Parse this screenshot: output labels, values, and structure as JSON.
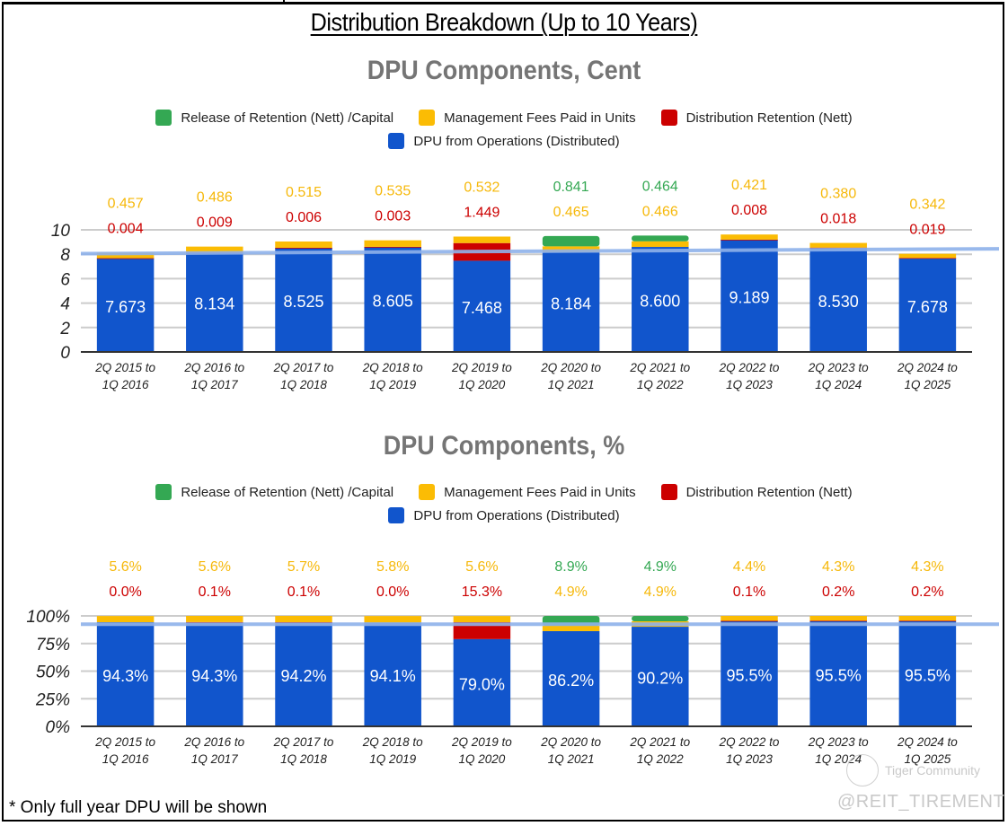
{
  "page": {
    "title": "Distribution Breakdown (Up to 10 Years)",
    "footnote": "* Only full year DPU will be shown",
    "watermark": {
      "community": "Tiger Community",
      "handle": "@REIT_TIREMENT"
    }
  },
  "colors": {
    "release": "#34a853",
    "mgmt": "#fbbc04",
    "retention": "#cc0000",
    "operations": "#1155cc",
    "trendline": "#8fb2ea",
    "grid": "#cccccc",
    "axis": "#333333"
  },
  "legend": {
    "items": [
      {
        "key": "release",
        "label": "Release of Retention (Nett) /Capital",
        "icon": "green-square-icon"
      },
      {
        "key": "mgmt",
        "label": "Management Fees Paid in Units",
        "icon": "yellow-square-icon"
      },
      {
        "key": "retention",
        "label": "Distribution Retention (Nett)",
        "icon": "red-square-icon"
      },
      {
        "key": "operations",
        "label": "DPU from Operations (Distributed)",
        "icon": "blue-square-icon"
      }
    ]
  },
  "chart_data": [
    {
      "type": "bar",
      "stacked": true,
      "title": "DPU Components, Cent",
      "xlabel": "",
      "ylabel": "",
      "ylim": [
        0,
        10
      ],
      "yticks": [
        "0",
        "2",
        "4",
        "6",
        "8",
        "10"
      ],
      "ytick_values": [
        0,
        2,
        4,
        6,
        8,
        10
      ],
      "grid": true,
      "legend_position": "top",
      "categories": [
        [
          "2Q 2015 to",
          "1Q 2016"
        ],
        [
          "2Q 2016 to",
          "1Q 2017"
        ],
        [
          "2Q 2017 to",
          "1Q 2018"
        ],
        [
          "2Q 2018 to",
          "1Q 2019"
        ],
        [
          "2Q 2019 to",
          "1Q 2020"
        ],
        [
          "2Q 2020 to",
          "1Q 2021"
        ],
        [
          "2Q 2021 to",
          "1Q 2022"
        ],
        [
          "2Q 2022 to",
          "1Q 2023"
        ],
        [
          "2Q 2023 to",
          "1Q 2024"
        ],
        [
          "2Q 2024 to",
          "1Q 2025"
        ]
      ],
      "series": [
        {
          "key": "operations",
          "name": "DPU from Operations (Distributed)",
          "values": [
            7.673,
            8.134,
            8.525,
            8.605,
            7.468,
            8.184,
            8.6,
            9.189,
            8.53,
            7.678
          ],
          "labels": [
            "7.673",
            "8.134",
            "8.525",
            "8.605",
            "7.468",
            "8.184",
            "8.600",
            "9.189",
            "8.530",
            "7.678"
          ]
        },
        {
          "key": "retention",
          "name": "Distribution Retention (Nett)",
          "values": [
            0.004,
            0.009,
            0.006,
            0.003,
            1.449,
            null,
            null,
            0.008,
            0.018,
            0.019
          ],
          "labels": [
            "0.004",
            "0.009",
            "0.006",
            "0.003",
            "1.449",
            null,
            null,
            "0.008",
            "0.018",
            "0.019"
          ]
        },
        {
          "key": "mgmt",
          "name": "Management Fees Paid in Units",
          "values": [
            0.457,
            0.486,
            0.515,
            0.535,
            0.532,
            0.465,
            0.466,
            0.421,
            0.38,
            0.342
          ],
          "labels": [
            "0.457",
            "0.486",
            "0.515",
            "0.535",
            "0.532",
            "0.465",
            "0.466",
            "0.421",
            "0.380",
            "0.342"
          ]
        },
        {
          "key": "release",
          "name": "Release of Retention (Nett) /Capital",
          "values": [
            null,
            null,
            null,
            null,
            null,
            0.841,
            0.464,
            null,
            null,
            null
          ],
          "labels": [
            null,
            null,
            null,
            null,
            null,
            "0.841",
            "0.464",
            null,
            null,
            null
          ]
        }
      ],
      "trendline": {
        "start": 8.05,
        "end": 8.45
      }
    },
    {
      "type": "bar",
      "stacked": true,
      "title": "DPU Components, %",
      "xlabel": "",
      "ylabel": "",
      "ylim": [
        0,
        100
      ],
      "yticks": [
        "0%",
        "25%",
        "50%",
        "75%",
        "100%"
      ],
      "ytick_values": [
        0,
        25,
        50,
        75,
        100
      ],
      "grid": true,
      "legend_position": "top",
      "categories": [
        [
          "2Q 2015 to",
          "1Q 2016"
        ],
        [
          "2Q 2016 to",
          "1Q 2017"
        ],
        [
          "2Q 2017 to",
          "1Q 2018"
        ],
        [
          "2Q 2018 to",
          "1Q 2019"
        ],
        [
          "2Q 2019 to",
          "1Q 2020"
        ],
        [
          "2Q 2020 to",
          "1Q 2021"
        ],
        [
          "2Q 2021 to",
          "1Q 2022"
        ],
        [
          "2Q 2022 to",
          "1Q 2023"
        ],
        [
          "2Q 2023 to",
          "1Q 2024"
        ],
        [
          "2Q 2024 to",
          "1Q 2025"
        ]
      ],
      "series": [
        {
          "key": "operations",
          "name": "DPU from Operations (Distributed)",
          "values": [
            94.3,
            94.3,
            94.2,
            94.1,
            79.0,
            86.2,
            90.2,
            95.5,
            95.5,
            95.5
          ],
          "labels": [
            "94.3%",
            "94.3%",
            "94.2%",
            "94.1%",
            "79.0%",
            "86.2%",
            "90.2%",
            "95.5%",
            "95.5%",
            "95.5%"
          ]
        },
        {
          "key": "retention",
          "name": "Distribution Retention (Nett)",
          "values": [
            0.0,
            0.1,
            0.1,
            0.0,
            15.3,
            null,
            null,
            0.1,
            0.2,
            0.2
          ],
          "labels": [
            "0.0%",
            "0.1%",
            "0.1%",
            "0.0%",
            "15.3%",
            null,
            null,
            "0.1%",
            "0.2%",
            "0.2%"
          ]
        },
        {
          "key": "mgmt",
          "name": "Management Fees Paid in Units",
          "values": [
            5.6,
            5.6,
            5.7,
            5.8,
            5.6,
            4.9,
            4.9,
            4.4,
            4.3,
            4.3
          ],
          "labels": [
            "5.6%",
            "5.6%",
            "5.7%",
            "5.8%",
            "5.6%",
            "4.9%",
            "4.9%",
            "4.4%",
            "4.3%",
            "4.3%"
          ]
        },
        {
          "key": "release",
          "name": "Release of Retention (Nett) /Capital",
          "values": [
            null,
            null,
            null,
            null,
            null,
            8.9,
            4.9,
            null,
            null,
            null
          ],
          "labels": [
            null,
            null,
            null,
            null,
            null,
            "8.9%",
            "4.9%",
            null,
            null,
            null
          ]
        }
      ],
      "trendline": {
        "start": 92.5,
        "end": 92.5
      }
    }
  ]
}
